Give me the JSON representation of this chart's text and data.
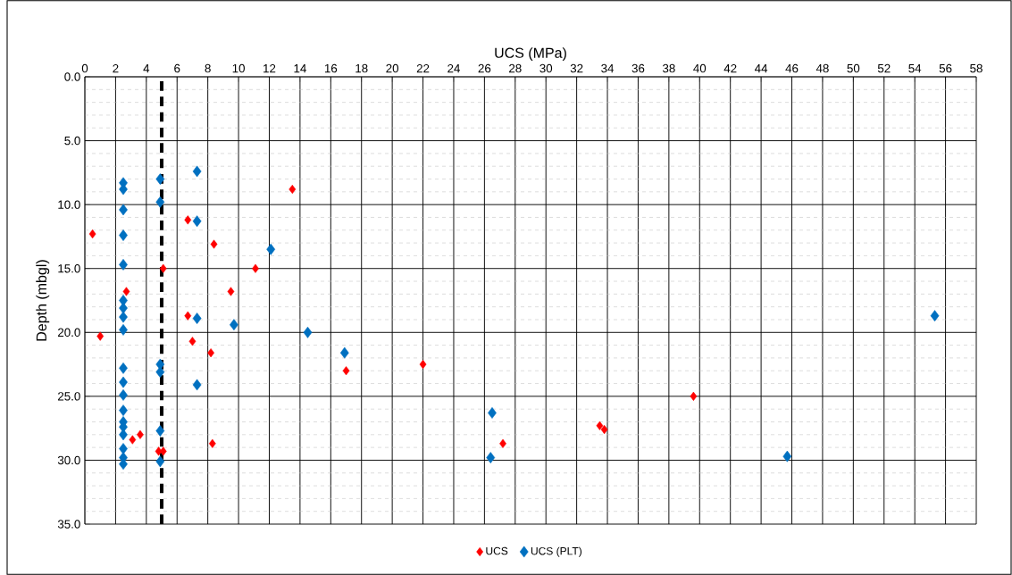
{
  "chart_data": {
    "type": "scatter",
    "xlabel": "UCS (MPa)",
    "ylabel": "Depth (mbgl)",
    "xlim": [
      0,
      58
    ],
    "xticks": [
      0,
      2,
      4,
      6,
      8,
      10,
      12,
      14,
      16,
      18,
      20,
      22,
      24,
      26,
      28,
      30,
      32,
      34,
      36,
      38,
      40,
      42,
      44,
      46,
      48,
      50,
      52,
      54,
      56,
      58
    ],
    "ylim": [
      35,
      0
    ],
    "yticks": [
      {
        "value": 0,
        "label": "0.0"
      },
      {
        "value": 5,
        "label": "5.0"
      },
      {
        "value": 10,
        "label": "10.0"
      },
      {
        "value": 15,
        "label": "15.0"
      },
      {
        "value": 20,
        "label": "20.0"
      },
      {
        "value": 25,
        "label": "25.0"
      },
      {
        "value": 30,
        "label": "30.0"
      },
      {
        "value": 35,
        "label": "35.0"
      }
    ],
    "grid": true,
    "legend": "bottom",
    "marker": "diamond",
    "ref_lines": [
      {
        "axis": "x",
        "value": 5,
        "color": "#000000",
        "line_style": "dashed"
      }
    ],
    "series": [
      {
        "name": "UCS",
        "color": "#ff0000",
        "x": [
          0.5,
          1.0,
          2.7,
          6.7,
          8.4,
          5.1,
          11.1,
          9.5,
          6.7,
          7.0,
          8.2,
          13.5,
          17.0,
          22.0,
          3.1,
          3.6,
          4.8,
          5.1,
          8.3,
          33.5,
          33.8,
          39.6,
          27.2
        ],
        "values": [
          12.3,
          20.3,
          16.8,
          11.2,
          13.1,
          15.0,
          15.0,
          16.8,
          18.7,
          20.7,
          21.6,
          8.8,
          23.0,
          22.5,
          28.4,
          28.0,
          29.3,
          29.3,
          28.7,
          27.3,
          27.6,
          25.0,
          28.7
        ]
      },
      {
        "name": "UCS (PLT)",
        "color": "#0070c0",
        "x": [
          2.5,
          2.5,
          2.5,
          2.5,
          2.5,
          4.9,
          4.9,
          7.3,
          7.3,
          12.1,
          2.5,
          2.5,
          2.5,
          2.5,
          7.3,
          9.7,
          4.9,
          4.9,
          7.3,
          2.5,
          2.5,
          2.5,
          2.5,
          2.5,
          2.5,
          2.5,
          2.5,
          2.5,
          2.5,
          4.9,
          4.9,
          14.5,
          16.9,
          26.5,
          55.3,
          45.7,
          26.4
        ],
        "values": [
          8.3,
          8.8,
          10.4,
          12.4,
          14.7,
          8.0,
          9.8,
          7.4,
          11.3,
          13.5,
          17.5,
          18.1,
          18.8,
          19.8,
          18.9,
          19.4,
          22.5,
          23.1,
          24.1,
          22.8,
          23.9,
          24.9,
          26.1,
          27.0,
          27.4,
          28.0,
          29.1,
          29.8,
          30.3,
          27.7,
          30.1,
          20.0,
          21.6,
          26.3,
          18.7,
          29.7,
          29.8
        ]
      }
    ]
  }
}
